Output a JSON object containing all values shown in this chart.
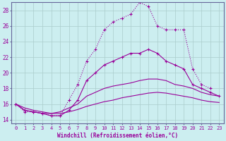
{
  "xlabel": "Windchill (Refroidissement éolien,°C)",
  "bg_color": "#cceef0",
  "line_color": "#990099",
  "grid_color": "#aacccc",
  "xlim": [
    -0.5,
    23.5
  ],
  "ylim": [
    13.5,
    29.0
  ],
  "xticks": [
    0,
    1,
    2,
    3,
    4,
    5,
    6,
    7,
    8,
    9,
    10,
    11,
    12,
    13,
    14,
    15,
    16,
    17,
    18,
    19,
    20,
    21,
    22,
    23
  ],
  "yticks": [
    14,
    16,
    18,
    20,
    22,
    24,
    26,
    28
  ],
  "s1_x": [
    0,
    1,
    2,
    3,
    4,
    5,
    6,
    7,
    8,
    9,
    10,
    11,
    12,
    13,
    14,
    15,
    16,
    17,
    18,
    19,
    20,
    21,
    22
  ],
  "s1_y": [
    16.0,
    15.0,
    15.0,
    14.8,
    14.5,
    14.5,
    16.5,
    18.5,
    21.5,
    23.0,
    25.5,
    26.5,
    27.0,
    27.5,
    29.0,
    28.5,
    26.0,
    25.5,
    25.5,
    25.5,
    20.5,
    18.5,
    18.0
  ],
  "s2_x": [
    0,
    1,
    2,
    3,
    4,
    5,
    6,
    7,
    8,
    9,
    10,
    11,
    12,
    13,
    14,
    15,
    16,
    17,
    18,
    19,
    20,
    21,
    22,
    23
  ],
  "s2_y": [
    16.0,
    15.2,
    15.0,
    14.8,
    14.5,
    14.5,
    15.2,
    16.5,
    19.0,
    20.0,
    21.0,
    21.5,
    22.0,
    22.5,
    22.5,
    23.0,
    22.5,
    21.5,
    21.0,
    20.5,
    18.5,
    18.0,
    17.5,
    17.0
  ],
  "s3_x": [
    0,
    1,
    2,
    3,
    4,
    5,
    6,
    7,
    8,
    9,
    10,
    11,
    12,
    13,
    14,
    15,
    16,
    17,
    18,
    19,
    20,
    21,
    22,
    23
  ],
  "s3_y": [
    16.0,
    15.5,
    15.2,
    15.0,
    14.8,
    15.0,
    15.5,
    16.0,
    17.0,
    17.5,
    18.0,
    18.3,
    18.5,
    18.7,
    19.0,
    19.2,
    19.2,
    19.0,
    18.5,
    18.3,
    18.0,
    17.5,
    17.2,
    17.0
  ],
  "s4_x": [
    0,
    1,
    2,
    3,
    4,
    5,
    6,
    7,
    8,
    9,
    10,
    11,
    12,
    13,
    14,
    15,
    16,
    17,
    18,
    19,
    20,
    21,
    22,
    23
  ],
  "s4_y": [
    16.0,
    15.2,
    15.0,
    14.8,
    14.8,
    14.8,
    15.0,
    15.3,
    15.7,
    16.0,
    16.3,
    16.5,
    16.8,
    17.0,
    17.2,
    17.4,
    17.5,
    17.4,
    17.2,
    17.0,
    16.8,
    16.5,
    16.3,
    16.2
  ]
}
